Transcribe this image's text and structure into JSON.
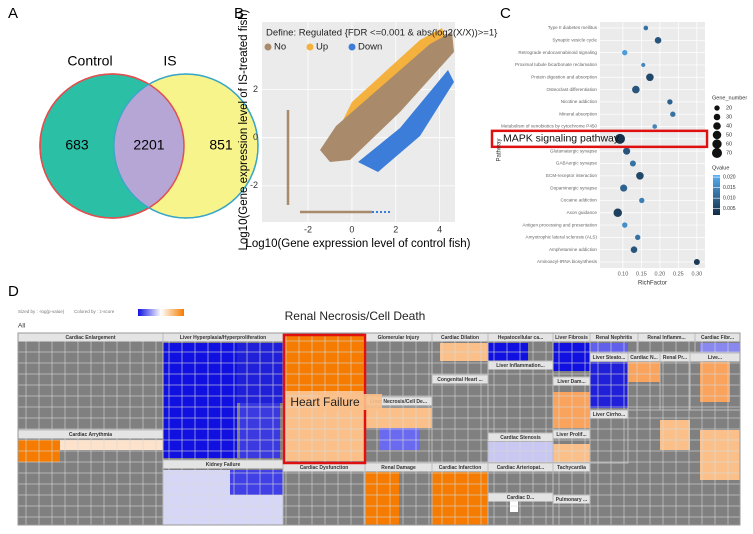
{
  "panel_labels": [
    "A",
    "B",
    "C",
    "D"
  ],
  "chart_data": [
    {
      "type": "venn",
      "sets": [
        "Control",
        "IS"
      ],
      "values": [
        683,
        2201,
        851
      ]
    },
    {
      "type": "scatter",
      "title": "Define: Regulated {FDR <=0.001 & abs(log2(X/X))>=1}",
      "x_label": "Log10(Gene expression level of control fish)",
      "y_label": "Log10(Gene expression level of IS-treated fish)",
      "series": [
        {
          "name": "No",
          "color": "#a98b6c"
        },
        {
          "name": "Up",
          "color": "#f5b13d"
        },
        {
          "name": "Down",
          "color": "#3b7dd8"
        }
      ],
      "xlim": [
        -4.1,
        4.7
      ],
      "xticks": [
        -2,
        0,
        2,
        4
      ],
      "ylim": [
        -3.5,
        4.8
      ],
      "yticks": [
        -2,
        0,
        2
      ]
    },
    {
      "type": "bubble",
      "categories": [
        "Type II diabetes mellitus",
        "Synaptic vesicle cycle",
        "Retrograde endocannabinoid signaling",
        "Proximal tubule bicarbonate reclamation",
        "Protein digestion and absorption",
        "Osteoclast differentiation",
        "Nicotine addiction",
        "Mineral absorption",
        "Metabolism of xenobiotics by cytochrome P450",
        "MAPK signaling pathway",
        "Glutamatergic synapse",
        "GABAergic synapse",
        "ECM-receptor interaction",
        "Dopaminergic synapse",
        "Cocaine addiction",
        "Axon guidance",
        "Antigen processing and presentation",
        "Amyotrophic lateral sclerosis (ALS)",
        "Amphetamine addiction",
        "Aminoacyl-tRNA biosynthesis"
      ],
      "values": [
        0.162,
        0.195,
        0.105,
        0.155,
        0.173,
        0.135,
        0.227,
        0.235,
        0.186,
        0.092,
        0.11,
        0.127,
        0.146,
        0.102,
        0.151,
        0.086,
        0.105,
        0.14,
        0.13,
        0.3
      ],
      "sizes": [
        15,
        30,
        20,
        12,
        40,
        40,
        20,
        20,
        15,
        70,
        35,
        25,
        40,
        35,
        20,
        50,
        20,
        20,
        30,
        25
      ],
      "qvalues": [
        0.012,
        0.008,
        0.018,
        0.015,
        0.006,
        0.008,
        0.01,
        0.012,
        0.015,
        0.003,
        0.008,
        0.012,
        0.006,
        0.01,
        0.014,
        0.005,
        0.016,
        0.012,
        0.008,
        0.004
      ],
      "highlight": 9,
      "x_label": "RichFactor",
      "y_label": "Pathway",
      "xlim": [
        0.038,
        0.322
      ],
      "xticks": [
        {
          "value": 0.1,
          "label": "0.10"
        },
        0.15,
        {
          "value": 0.2,
          "label": "0.20"
        },
        0.25,
        {
          "value": 0.3,
          "label": "0.30"
        }
      ],
      "size_legend": {
        "title": "Gene_number",
        "values": [
          20,
          30,
          40,
          50,
          60,
          70
        ]
      },
      "color_legend": {
        "title": "Qvalue",
        "lim": [
          0.002,
          0.021
        ],
        "ticks": [
          {
            "value": 0.02,
            "label": "0.020"
          },
          0.015,
          {
            "value": 0.01,
            "label": "0.010"
          },
          0.005
        ]
      }
    },
    {
      "type": "treemap",
      "sized_by": "Sized by : -log(p-value)",
      "colored_by": "Colored by : z-score",
      "root": "All",
      "annotations": [
        "Renal Necrosis/Cell Death",
        "Heart Failure"
      ],
      "groups": [
        "Cardiac Enlargement",
        "Cardiac Arrythmia",
        "Liver Hyperplasia/Hyperproliferation",
        "Kidney Failure",
        "Cardiac Dysfunction",
        "Glomerular Injury",
        "Liver Necrosis/Cell De...",
        "Cardiac Dilation",
        "Congenital Heart ...",
        "Renal Damage",
        "Cardiac Infarction",
        "Hepatocellular ca...",
        "Liver Inflammation...",
        "Cardiac Stenosis",
        "Cardiac Arteriopat...",
        "Cardiac D...",
        "Liver Fibrosis",
        "Liver Dam...",
        "Liver Prolif...",
        "Tachycardia",
        "Pulmonary ...",
        "Renal Nephritis",
        "Renal Inflamm...",
        "Cardiac Fibr...",
        "Liver Steato...",
        "Cardiac N...",
        "Renal Pr...",
        "Live...",
        "Liver Cirrho..."
      ]
    }
  ]
}
